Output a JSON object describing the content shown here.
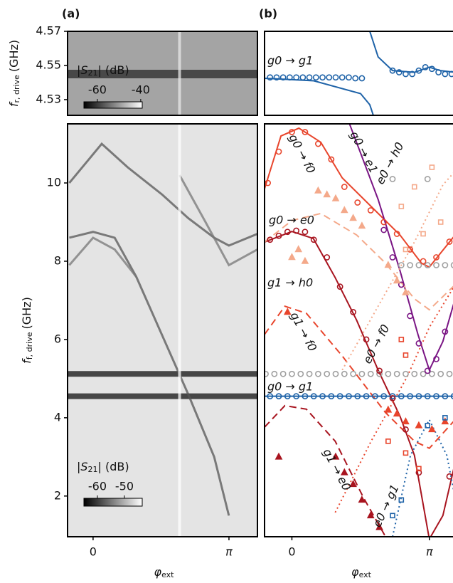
{
  "chart_data": [
    {
      "type": "heatmap",
      "title": "(a)",
      "xlim": [
        -0.59,
        3.8
      ],
      "ylim": [
        4.5208,
        4.57
      ],
      "yticks": [
        4.53,
        4.55,
        4.57
      ],
      "y_label": {
        "symbol": "f",
        "sub": "r, drive",
        "unit": "(GHz)"
      },
      "colorbar": {
        "label": {
          "pre": "|S",
          "sub": "21",
          "post": "| (dB)"
        },
        "lim": [
          -66.2,
          -39.3
        ],
        "ticks": [
          -60,
          -40
        ]
      },
      "background": "#a4a4a4",
      "series": [
        {
          "color": "#2a2a2a",
          "x": [
            -0.59,
            3.8
          ],
          "values": [
            4.545,
            4.545
          ]
        },
        {
          "color": "#e8e8e8",
          "x": [
            2.0,
            2.0
          ],
          "values": [
            4.5208,
            4.57
          ]
        }
      ]
    },
    {
      "type": "heatmap",
      "xlim": [
        -0.59,
        3.8
      ],
      "ylim": [
        0.96,
        11.51
      ],
      "xticks": [
        0,
        {
          "value": 3.1416,
          "label": "π"
        }
      ],
      "yticks": [
        2,
        4,
        6,
        8,
        10
      ],
      "x_label": {
        "symbol": "φ",
        "sub": "ext"
      },
      "y_label": {
        "symbol": "f",
        "sub": "f, drive",
        "unit": "(GHz)"
      },
      "colorbar": {
        "label": {
          "pre": "|S",
          "sub": "21",
          "post": "| (dB)"
        },
        "lim": [
          -65,
          -43.4
        ],
        "ticks": [
          -60,
          -50
        ]
      },
      "background": "#e4e4e4",
      "series": [
        {
          "color": "#111111",
          "x": [
            -0.59,
            3.8
          ],
          "values": [
            5.12,
            5.12
          ]
        },
        {
          "color": "#111111",
          "x": [
            -0.59,
            3.8
          ],
          "values": [
            4.55,
            4.55
          ]
        },
        {
          "color": "#555555",
          "x": [
            -0.55,
            0.2,
            0.8,
            1.6,
            2.2,
            2.8,
            3.14,
            3.8
          ],
          "values": [
            10.0,
            11.0,
            10.4,
            9.7,
            9.1,
            8.6,
            8.4,
            8.7
          ]
        },
        {
          "color": "#555555",
          "x": [
            -0.55,
            0,
            0.5,
            1.0,
            1.6,
            2.2,
            2.8,
            3.14
          ],
          "values": [
            8.6,
            8.75,
            8.6,
            7.6,
            6.1,
            4.6,
            3.0,
            1.5
          ]
        },
        {
          "color": "#777777",
          "x": [
            -0.55,
            0,
            0.5,
            1.0
          ],
          "values": [
            7.9,
            8.6,
            8.3,
            7.6
          ]
        },
        {
          "color": "#777777",
          "x": [
            2.0,
            2.6,
            3.14,
            3.8
          ],
          "values": [
            10.2,
            9.0,
            7.9,
            8.3
          ]
        },
        {
          "color": "#ffffff",
          "x": [
            2.0,
            2.0
          ],
          "values": [
            0.96,
            11.51
          ]
        }
      ]
    },
    {
      "type": "line",
      "title": "(b)",
      "xlim": [
        -0.625,
        3.73
      ],
      "ylim": [
        4.5208,
        4.57
      ],
      "series": [
        {
          "name": "g0 → g1",
          "color": "#1f63a8",
          "style": "solid",
          "x": [
            -0.625,
            0.5,
            1.57,
            1.78,
            1.86
          ],
          "values": [
            4.5425,
            4.541,
            4.5335,
            4.527,
            4.5208
          ]
        },
        {
          "color": "#1f63a8",
          "style": "solid",
          "x": [
            1.78,
            1.97,
            2.3,
            2.8,
            3.14,
            3.39,
            3.73
          ],
          "values": [
            4.57,
            4.555,
            4.547,
            4.546,
            4.549,
            4.547,
            4.546
          ]
        },
        {
          "color": "#1f63a8",
          "marker": "circle",
          "x": [
            -0.5,
            -0.35,
            -0.2,
            -0.05,
            0.1,
            0.25,
            0.4,
            0.55,
            0.7,
            0.85,
            1.0,
            1.15,
            1.3,
            1.45,
            1.6,
            2.3,
            2.45,
            2.6,
            2.75,
            2.9,
            3.05,
            3.2,
            3.35,
            3.5,
            3.65
          ],
          "values": [
            4.543,
            4.543,
            4.543,
            4.543,
            4.543,
            4.543,
            4.543,
            4.543,
            4.543,
            4.543,
            4.543,
            4.543,
            4.543,
            4.5425,
            4.5425,
            4.547,
            4.546,
            4.545,
            4.545,
            4.547,
            4.549,
            4.548,
            4.546,
            4.545,
            4.545
          ]
        }
      ]
    },
    {
      "type": "line",
      "xlim": [
        -0.625,
        3.73
      ],
      "ylim": [
        0.96,
        11.51
      ],
      "xticks": [
        0,
        {
          "value": 3.1416,
          "label": "π"
        }
      ],
      "x_label": {
        "symbol": "φ",
        "sub": "ext"
      },
      "series": [
        {
          "name": "g0 → g1",
          "color": "#1f63a8",
          "style": "solid",
          "x": [
            -0.625,
            3.73
          ],
          "values": [
            4.55,
            4.55
          ]
        },
        {
          "name": "g0 → e0",
          "color": "#a8141f",
          "style": "solid",
          "x": [
            -0.625,
            0,
            0.49,
            0.99,
            1.48,
            1.97,
            2.47,
            2.8,
            3.14,
            3.45,
            3.73
          ],
          "values": [
            8.49,
            8.76,
            8.58,
            7.58,
            6.49,
            5.22,
            4.04,
            3.04,
            0.9,
            1.5,
            2.85
          ]
        },
        {
          "name": "g0 → f0",
          "color": "#e8452c",
          "style": "solid",
          "x": [
            -0.625,
            -0.25,
            0.16,
            0.66,
            1.15,
            1.81,
            2.47,
            2.96,
            3.14,
            3.73
          ],
          "values": [
            9.85,
            11.2,
            11.4,
            11.04,
            10.13,
            9.4,
            8.67,
            7.95,
            7.85,
            8.67
          ]
        },
        {
          "name": "g0 → e1",
          "color": "#7a1584",
          "style": "solid",
          "x": [
            1.32,
            1.97,
            2.47,
            2.88,
            3.14,
            3.45,
            3.73
          ],
          "values": [
            11.5,
            9.58,
            7.76,
            6.13,
            5.22,
            5.95,
            7.04
          ]
        },
        {
          "name": "g1 → h0",
          "color": "#f4a98a",
          "style": "dashed",
          "x": [
            -0.625,
            0,
            0.66,
            1.48,
            2.14,
            2.8,
            3.14,
            3.73
          ],
          "values": [
            8.49,
            9.04,
            9.22,
            8.67,
            7.95,
            7.04,
            6.76,
            7.4
          ]
        },
        {
          "name": "g1 → f0",
          "color": "#e8452c",
          "style": "dashed",
          "x": [
            -0.625,
            -0.16,
            0.33,
            1.15,
            2.14,
            2.8,
            3.14,
            3.73
          ],
          "values": [
            6.13,
            6.85,
            6.67,
            5.58,
            4.13,
            3.4,
            3.22,
            3.95
          ]
        },
        {
          "name": "g1 → e0",
          "color": "#a8141f",
          "style": "dashed",
          "x": [
            -0.625,
            -0.16,
            0.33,
            0.99,
            1.64,
            2.14
          ],
          "values": [
            3.76,
            4.31,
            4.22,
            3.4,
            1.95,
            0.96
          ]
        },
        {
          "name": "e0 → f0",
          "color": "#e8452c",
          "style": "dotted",
          "x": [
            0.99,
            1.81,
            2.63,
            3.14,
            3.73
          ],
          "values": [
            1.58,
            3.4,
            5.04,
            6.31,
            7.4
          ]
        },
        {
          "name": "e0 → h0",
          "color": "#f4a98a",
          "style": "dotted",
          "x": [
            1.15,
            1.97,
            2.8,
            3.45,
            3.73
          ],
          "values": [
            5.22,
            6.85,
            8.49,
            9.95,
            10.3
          ]
        },
        {
          "name": "e0 → g1",
          "color": "#1f63a8",
          "style": "dotted",
          "x": [
            2.3,
            2.71,
            3.14,
            3.54,
            3.73
          ],
          "values": [
            0.96,
            3.04,
            3.95,
            3.04,
            1.95
          ]
        },
        {
          "color": "#a0a0a0",
          "marker": "circle",
          "x": [
            -0.6,
            -0.4,
            -0.2,
            0,
            0.2,
            0.4,
            0.6,
            0.8,
            1.0,
            1.2,
            1.4,
            1.6,
            1.8,
            2.0,
            2.2,
            2.4,
            2.6,
            2.8,
            3.0,
            3.2,
            3.4,
            3.6,
            2.5,
            2.7,
            2.9,
            3.1,
            3.3,
            3.5,
            3.7,
            2.3,
            3.1
          ],
          "values": [
            5.12,
            5.12,
            5.12,
            5.12,
            5.12,
            5.12,
            5.12,
            5.12,
            5.12,
            5.12,
            5.12,
            5.12,
            5.12,
            5.12,
            5.12,
            5.12,
            5.12,
            5.12,
            5.12,
            5.12,
            5.12,
            5.12,
            7.9,
            7.9,
            7.9,
            7.9,
            7.9,
            7.9,
            7.9,
            10.1,
            10.1
          ]
        },
        {
          "color": "#1f63a8",
          "marker": "circle",
          "x": [
            -0.5,
            -0.3,
            -0.1,
            0.1,
            0.3,
            0.5,
            0.7,
            0.9,
            1.1,
            1.3,
            1.5,
            1.7,
            1.9,
            2.1,
            2.3,
            2.5,
            2.7,
            2.9,
            3.1,
            3.3,
            3.5,
            3.7
          ],
          "values": [
            4.55,
            4.55,
            4.55,
            4.55,
            4.55,
            4.55,
            4.55,
            4.55,
            4.55,
            4.55,
            4.55,
            4.55,
            4.55,
            4.55,
            4.55,
            4.55,
            4.55,
            4.55,
            4.55,
            4.55,
            4.55,
            4.55
          ]
        },
        {
          "color": "#a8141f",
          "marker": "circle",
          "x": [
            -0.5,
            -0.3,
            -0.1,
            0.1,
            0.3,
            0.5,
            0.8,
            1.1,
            1.4,
            1.7,
            2.0,
            2.3,
            2.6,
            2.9,
            3.6
          ],
          "values": [
            8.55,
            8.65,
            8.75,
            8.78,
            8.75,
            8.55,
            8.1,
            7.35,
            6.7,
            6.0,
            5.2,
            4.5,
            3.7,
            2.6,
            2.5
          ]
        },
        {
          "color": "#e8452c",
          "marker": "circle",
          "x": [
            -0.55,
            -0.3,
            0,
            0.3,
            0.6,
            0.9,
            1.2,
            1.5,
            1.8,
            2.1,
            2.4,
            2.7,
            3.0,
            3.3,
            3.6
          ],
          "values": [
            10.0,
            10.8,
            11.3,
            11.3,
            11.0,
            10.6,
            9.9,
            9.5,
            9.3,
            9.0,
            8.7,
            8.3,
            8.0,
            8.1,
            8.5
          ]
        },
        {
          "color": "#7a1584",
          "marker": "circle",
          "x": [
            2.1,
            2.3,
            2.5,
            2.7,
            2.9,
            3.1,
            3.3,
            3.5
          ],
          "values": [
            8.8,
            8.1,
            7.4,
            6.6,
            5.9,
            5.2,
            5.5,
            6.2
          ]
        },
        {
          "color": "#f4a98a",
          "marker": "triangle",
          "x": [
            0.0,
            0.15,
            0.3,
            0.6,
            0.8,
            1.0,
            1.2,
            1.4,
            1.6,
            2.2,
            2.4,
            2.6
          ],
          "values": [
            8.1,
            8.3,
            8.0,
            9.8,
            9.7,
            9.6,
            9.3,
            9.1,
            8.9,
            7.9,
            7.5,
            7.2
          ]
        },
        {
          "color": "#e8452c",
          "marker": "triangle",
          "x": [
            -0.1,
            2.2,
            2.4,
            2.6,
            2.9,
            3.2,
            3.5
          ],
          "values": [
            6.7,
            4.2,
            4.1,
            3.9,
            3.8,
            3.7,
            3.9
          ]
        },
        {
          "color": "#a8141f",
          "marker": "triangle",
          "x": [
            -0.3,
            1.0,
            1.2,
            1.4,
            1.6,
            1.8,
            2.0
          ],
          "values": [
            3.0,
            3.0,
            2.6,
            2.3,
            1.9,
            1.5,
            1.2
          ]
        },
        {
          "color": "#f4a98a",
          "marker": "square",
          "x": [
            2.5,
            2.8,
            3.2,
            2.6,
            3.0,
            3.4
          ],
          "values": [
            9.4,
            9.9,
            10.4,
            8.3,
            8.7,
            9.0
          ]
        },
        {
          "color": "#e8452c",
          "marker": "square",
          "x": [
            2.5,
            2.6,
            2.2,
            2.6,
            2.9
          ],
          "values": [
            6.0,
            5.6,
            3.4,
            3.1,
            2.7
          ]
        },
        {
          "color": "#1f63a8",
          "marker": "square",
          "x": [
            2.3,
            2.5,
            3.1,
            3.5
          ],
          "values": [
            1.5,
            1.9,
            3.8,
            4.0
          ]
        }
      ]
    }
  ]
}
